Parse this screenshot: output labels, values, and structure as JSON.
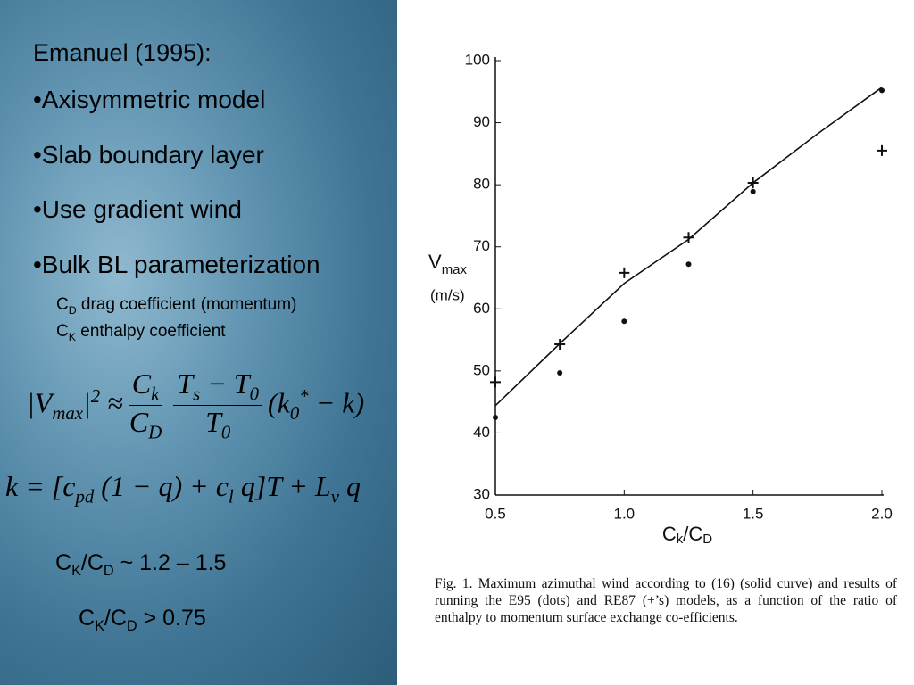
{
  "slide": {
    "heading": "Emanuel (1995):",
    "bullets": [
      "•Axisymmetric model",
      "•Slab boundary layer",
      "•Use gradient wind",
      "•Bulk BL parameterization"
    ],
    "notes": [
      [
        {
          "t": "C"
        },
        {
          "sub": "D"
        },
        {
          "t": " drag coefficient (momentum)"
        }
      ],
      [
        {
          "t": "C"
        },
        {
          "sub": "K"
        },
        {
          "t": " enthalpy coefficient"
        }
      ]
    ],
    "equation1": {
      "lhs": [
        {
          "t": "|V"
        },
        {
          "sub": "max"
        },
        {
          "t": "|"
        },
        {
          "sup": "2"
        },
        {
          "t": " ≈ "
        }
      ],
      "fractions": [
        {
          "num": [
            {
              "t": "C"
            },
            {
              "sub": "k"
            }
          ],
          "den": [
            {
              "t": "C"
            },
            {
              "sub": "D"
            }
          ]
        },
        {
          "num": [
            {
              "t": "T"
            },
            {
              "sub": "s"
            },
            {
              "t": " − T"
            },
            {
              "sub": "0"
            }
          ],
          "den": [
            {
              "t": "T"
            },
            {
              "sub": "0"
            }
          ]
        }
      ],
      "rhs": [
        {
          "t": "(k"
        },
        {
          "sub": "0"
        },
        {
          "sup": "*"
        },
        {
          "t": " − k)"
        }
      ]
    },
    "equation2": [
      {
        "t": "k = [c"
      },
      {
        "sub": "pd"
      },
      {
        "t": " (1 − q) + c"
      },
      {
        "sub": "l"
      },
      {
        "t": " q]T + L"
      },
      {
        "sub": "v"
      },
      {
        "t": " q"
      }
    ],
    "ratios": [
      [
        {
          "t": "C"
        },
        {
          "sub": "K"
        },
        {
          "t": "/C"
        },
        {
          "sub": "D"
        },
        {
          "t": " ~ 1.2 – 1.5"
        }
      ],
      [
        {
          "t": "C"
        },
        {
          "sub": "K"
        },
        {
          "t": "/C"
        },
        {
          "sub": "D"
        },
        {
          "t": " > 0.75"
        }
      ]
    ]
  },
  "chart_data": {
    "type": "scatter",
    "xlabel": [
      "C",
      "k",
      "/C",
      "D"
    ],
    "ylabel": [
      "V",
      "max"
    ],
    "yunit": "(m/s)",
    "xlim": [
      0.5,
      2.0
    ],
    "ylim": [
      30,
      100
    ],
    "xticks": [
      0.5,
      {
        "value": 1,
        "label": "1.0"
      },
      1.5,
      {
        "value": 2,
        "label": "2.0"
      }
    ],
    "yticks": [
      30,
      40,
      50,
      60,
      70,
      80,
      90,
      100
    ],
    "series": [
      {
        "marker": "dot",
        "color": "#111111",
        "x": [
          0.5,
          0.75,
          1.0,
          1.25,
          1.5,
          2.0
        ],
        "values": [
          42.5,
          49.7,
          58.0,
          67.2,
          78.9,
          95.2
        ]
      },
      {
        "marker": "plus",
        "color": "#111111",
        "x": [
          0.5,
          0.75,
          1.0,
          1.25,
          1.5,
          2.0
        ],
        "values": [
          48.2,
          54.3,
          65.8,
          71.5,
          80.3,
          85.5
        ]
      },
      {
        "marker": "line",
        "color": "#111111",
        "x": [
          0.5,
          0.75,
          1.0,
          1.25,
          1.5,
          1.75,
          2.0
        ],
        "values": [
          44.4,
          54.4,
          64.1,
          71.2,
          80.3,
          88.2,
          95.7
        ]
      }
    ],
    "caption": "Fig. 1. Maximum azimuthal wind according to (16) (solid curve) and results of running the E95 (dots) and RE87 (+’s) models, as a function of the ratio of enthalpy to momentum surface exchange co-efficients."
  }
}
